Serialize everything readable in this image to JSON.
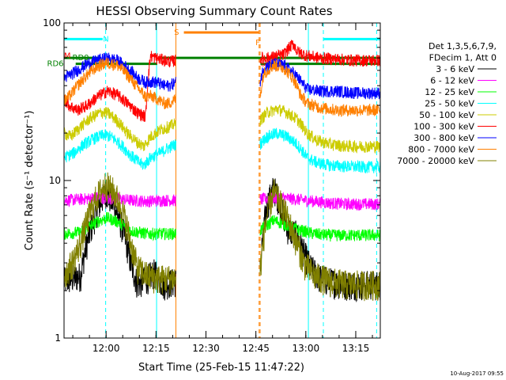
{
  "chart_data": {
    "type": "line",
    "title": "HESSI Observing Summary Count Rates",
    "xlabel": "Start Time (25-Feb-15 11:47:22)",
    "ylabel": "Count Rate (s⁻¹ detector⁻¹)",
    "yscale": "log",
    "ylim": [
      1,
      100
    ],
    "xlim_minutes": [
      0,
      95
    ],
    "x_ticks": [
      {
        "m": 12.63,
        "label": "12:00"
      },
      {
        "m": 27.63,
        "label": "12:15"
      },
      {
        "m": 42.63,
        "label": "12:30"
      },
      {
        "m": 57.63,
        "label": "12:45"
      },
      {
        "m": 72.63,
        "label": "13:00"
      },
      {
        "m": 87.63,
        "label": "13:15"
      }
    ],
    "y_ticks": [
      {
        "v": 1,
        "label": "1"
      },
      {
        "v": 10,
        "label": "10"
      },
      {
        "v": 100,
        "label": "100"
      }
    ],
    "legend_header": [
      "Det 1,3,5,6,7,9,",
      "FDecim 1, Att 0"
    ],
    "legend_position": "right",
    "footer": "10-Aug-2017 09:55",
    "gaps": [
      [
        33.6,
        58.8
      ]
    ],
    "series": [
      {
        "name": "3 - 6 keV",
        "color": "#000000",
        "values": [
          [
            0.0,
            2.3
          ],
          [
            2.5,
            2.4
          ],
          [
            5.0,
            2.5
          ],
          [
            7.5,
            4.5
          ],
          [
            10.0,
            6.5
          ],
          [
            12.5,
            8.5
          ],
          [
            15.0,
            7.0
          ],
          [
            17.5,
            5.0
          ],
          [
            20.0,
            3.0
          ],
          [
            22.0,
            2.2
          ],
          [
            25.0,
            2.4
          ],
          [
            27.0,
            2.6
          ],
          [
            30.0,
            2.2
          ],
          [
            33.6,
            2.3
          ],
          [
            58.8,
            2.5
          ],
          [
            61.0,
            7.0
          ],
          [
            63.0,
            9.0
          ],
          [
            65.0,
            7.0
          ],
          [
            67.0,
            5.0
          ],
          [
            70.0,
            4.5
          ],
          [
            72.0,
            3.5
          ],
          [
            74.0,
            2.8
          ],
          [
            77.0,
            2.4
          ],
          [
            80.0,
            2.3
          ],
          [
            84.0,
            2.2
          ],
          [
            88.0,
            2.2
          ],
          [
            92.0,
            2.2
          ],
          [
            95.0,
            2.2
          ]
        ]
      },
      {
        "name": "6 - 12 keV",
        "color": "#ff00ff",
        "values": [
          [
            0.0,
            7.5
          ],
          [
            5.0,
            7.6
          ],
          [
            10.0,
            7.8
          ],
          [
            15.0,
            7.7
          ],
          [
            20.0,
            7.5
          ],
          [
            25.0,
            7.4
          ],
          [
            30.0,
            7.5
          ],
          [
            33.6,
            7.5
          ],
          [
            58.8,
            7.6
          ],
          [
            65.0,
            7.8
          ],
          [
            70.0,
            7.6
          ],
          [
            75.0,
            7.4
          ],
          [
            80.0,
            7.2
          ],
          [
            85.0,
            7.1
          ],
          [
            90.0,
            7.1
          ],
          [
            95.0,
            7.1
          ]
        ]
      },
      {
        "name": "12 - 25 keV",
        "color": "#00ff00",
        "values": [
          [
            0.0,
            4.6
          ],
          [
            5.0,
            4.7
          ],
          [
            10.0,
            5.5
          ],
          [
            13.0,
            5.8
          ],
          [
            16.0,
            5.5
          ],
          [
            20.0,
            4.8
          ],
          [
            25.0,
            4.6
          ],
          [
            30.0,
            4.6
          ],
          [
            33.6,
            4.6
          ],
          [
            58.8,
            4.8
          ],
          [
            63.0,
            5.6
          ],
          [
            67.0,
            5.2
          ],
          [
            70.0,
            4.9
          ],
          [
            75.0,
            4.6
          ],
          [
            80.0,
            4.5
          ],
          [
            85.0,
            4.5
          ],
          [
            90.0,
            4.5
          ],
          [
            95.0,
            4.5
          ]
        ]
      },
      {
        "name": "25 - 50 keV",
        "color": "#00ffff",
        "values": [
          [
            0.0,
            14.0
          ],
          [
            3.0,
            15.0
          ],
          [
            6.0,
            17.0
          ],
          [
            9.0,
            18.5
          ],
          [
            12.0,
            19.5
          ],
          [
            14.0,
            19.0
          ],
          [
            17.0,
            17.0
          ],
          [
            20.0,
            14.5
          ],
          [
            22.5,
            13.0
          ],
          [
            24.0,
            12.5
          ],
          [
            26.0,
            14.0
          ],
          [
            29.0,
            15.0
          ],
          [
            31.0,
            16.0
          ],
          [
            33.6,
            17.0
          ],
          [
            58.8,
            17.0
          ],
          [
            61.0,
            19.0
          ],
          [
            64.0,
            20.0
          ],
          [
            67.0,
            19.0
          ],
          [
            70.0,
            17.0
          ],
          [
            73.0,
            14.0
          ],
          [
            76.0,
            13.0
          ],
          [
            80.0,
            12.5
          ],
          [
            85.0,
            12.3
          ],
          [
            90.0,
            12.2
          ],
          [
            95.0,
            12.2
          ]
        ]
      },
      {
        "name": "50 - 100 keV",
        "color": "#cccc00",
        "values": [
          [
            0.0,
            20.0
          ],
          [
            2.0,
            19.0
          ],
          [
            5.0,
            22.0
          ],
          [
            8.0,
            25.0
          ],
          [
            11.0,
            27.0
          ],
          [
            13.0,
            27.0
          ],
          [
            16.0,
            24.0
          ],
          [
            19.0,
            20.0
          ],
          [
            22.0,
            17.5
          ],
          [
            24.0,
            16.5
          ],
          [
            26.0,
            19.0
          ],
          [
            29.0,
            21.0
          ],
          [
            31.5,
            22.0
          ],
          [
            33.6,
            23.0
          ],
          [
            58.8,
            24.0
          ],
          [
            61.0,
            27.0
          ],
          [
            64.0,
            28.5
          ],
          [
            67.0,
            27.0
          ],
          [
            70.0,
            24.5
          ],
          [
            73.0,
            20.0
          ],
          [
            76.0,
            18.0
          ],
          [
            80.0,
            17.0
          ],
          [
            85.0,
            16.5
          ],
          [
            90.0,
            16.5
          ],
          [
            95.0,
            16.5
          ]
        ]
      },
      {
        "name": "100 - 300 keV",
        "color": "#ff0000",
        "values": [
          [
            0.0,
            33.0
          ],
          [
            1.5,
            30.0
          ],
          [
            4.0,
            28.0
          ],
          [
            7.0,
            30.0
          ],
          [
            10.0,
            34.0
          ],
          [
            13.0,
            37.0
          ],
          [
            16.0,
            35.0
          ],
          [
            19.0,
            31.0
          ],
          [
            22.0,
            27.0
          ],
          [
            24.5,
            25.5
          ],
          [
            26.0,
            62.0
          ],
          [
            27.5,
            60.0
          ],
          [
            30.0,
            58.0
          ],
          [
            32.0,
            57.0
          ],
          [
            33.6,
            58.0
          ],
          [
            58.8,
            60.0
          ],
          [
            61.0,
            60.0
          ],
          [
            63.0,
            61.0
          ],
          [
            66.0,
            63.0
          ],
          [
            68.0,
            71.0
          ],
          [
            69.0,
            74.0
          ],
          [
            70.0,
            66.0
          ],
          [
            73.0,
            62.0
          ],
          [
            77.0,
            60.0
          ],
          [
            82.0,
            59.0
          ],
          [
            87.0,
            58.0
          ],
          [
            91.0,
            58.0
          ],
          [
            95.0,
            58.0
          ]
        ]
      },
      {
        "name": "300 - 800 keV",
        "color": "#0000ff",
        "values": [
          [
            0.0,
            45.0
          ],
          [
            2.0,
            47.0
          ],
          [
            4.0,
            50.0
          ],
          [
            7.0,
            55.0
          ],
          [
            10.0,
            58.0
          ],
          [
            13.0,
            60.0
          ],
          [
            16.0,
            58.0
          ],
          [
            19.0,
            52.0
          ],
          [
            22.0,
            45.0
          ],
          [
            24.5,
            42.0
          ],
          [
            26.0,
            42.5
          ],
          [
            28.0,
            42.0
          ],
          [
            30.0,
            40.0
          ],
          [
            31.5,
            40.0
          ],
          [
            33.6,
            42.0
          ],
          [
            58.8,
            42.0
          ],
          [
            60.0,
            52.0
          ],
          [
            63.0,
            55.0
          ],
          [
            66.0,
            54.0
          ],
          [
            69.0,
            48.0
          ],
          [
            71.0,
            43.0
          ],
          [
            73.0,
            38.0
          ],
          [
            77.0,
            37.0
          ],
          [
            82.0,
            37.0
          ],
          [
            88.0,
            36.0
          ],
          [
            95.0,
            36.0
          ]
        ]
      },
      {
        "name": "800 - 7000 keV",
        "color": "#ff8000",
        "values": [
          [
            0.0,
            32.0
          ],
          [
            2.0,
            35.0
          ],
          [
            4.0,
            40.0
          ],
          [
            7.0,
            47.0
          ],
          [
            10.0,
            53.0
          ],
          [
            13.0,
            56.0
          ],
          [
            16.0,
            54.0
          ],
          [
            19.0,
            47.0
          ],
          [
            22.0,
            39.0
          ],
          [
            24.5,
            34.0
          ],
          [
            26.0,
            34.5
          ],
          [
            28.0,
            33.0
          ],
          [
            30.0,
            31.0
          ],
          [
            31.5,
            31.0
          ],
          [
            33.6,
            33.0
          ],
          [
            58.8,
            33.0
          ],
          [
            60.0,
            48.0
          ],
          [
            63.0,
            54.0
          ],
          [
            66.0,
            52.0
          ],
          [
            69.0,
            44.0
          ],
          [
            71.0,
            35.0
          ],
          [
            73.0,
            31.0
          ],
          [
            77.0,
            29.0
          ],
          [
            82.0,
            28.0
          ],
          [
            88.0,
            28.0
          ],
          [
            95.0,
            28.0
          ]
        ]
      },
      {
        "name": "7000 - 20000 keV",
        "color": "#808000",
        "values": [
          [
            0.0,
            2.5
          ],
          [
            2.5,
            3.0
          ],
          [
            5.0,
            4.0
          ],
          [
            7.5,
            6.0
          ],
          [
            10.0,
            8.0
          ],
          [
            12.5,
            9.5
          ],
          [
            15.0,
            8.5
          ],
          [
            17.5,
            6.5
          ],
          [
            20.0,
            4.0
          ],
          [
            22.0,
            2.8
          ],
          [
            25.0,
            2.5
          ],
          [
            28.0,
            2.4
          ],
          [
            30.0,
            2.4
          ],
          [
            33.6,
            2.4
          ],
          [
            58.8,
            2.5
          ],
          [
            61.0,
            6.0
          ],
          [
            63.0,
            8.5
          ],
          [
            66.0,
            6.5
          ],
          [
            69.0,
            4.5
          ],
          [
            72.0,
            3.0
          ],
          [
            75.0,
            2.5
          ],
          [
            80.0,
            2.3
          ],
          [
            85.0,
            2.2
          ],
          [
            90.0,
            2.2
          ],
          [
            95.0,
            2.2
          ]
        ]
      }
    ],
    "flags": [
      {
        "label": "N",
        "color": "#00ffff",
        "y": 79,
        "segments": [
          [
            0.0,
            11.6
          ],
          [
            78.0,
            95.0
          ]
        ],
        "label_m": 12.6
      },
      {
        "label": "S",
        "color": "#ff8000",
        "y": 87,
        "segments": [
          [
            36.0,
            58.5
          ]
        ],
        "label_m": 33.8
      },
      {
        "label": "F",
        "color": "#ff8000",
        "y": 75,
        "segments": [],
        "label_m": 58.2
      },
      {
        "label": "RD0",
        "color": "#008000",
        "y": 60,
        "segments": [
          [
            0.0,
            11.0
          ],
          [
            29.0,
            95.0
          ]
        ],
        "label_m": 5.0
      },
      {
        "label": "RD6",
        "color": "#008000",
        "y": 55,
        "segments": [
          [
            0.0,
            0.0
          ],
          [
            3.5,
            28.0
          ],
          [
            59.0,
            95.0
          ]
        ],
        "label_m": -2.6
      }
    ],
    "markers": [
      {
        "label": "M",
        "color": "#ff0000",
        "m": 1.0,
        "y": 62
      },
      {
        "label": "SAA",
        "color": "#ff0000",
        "m": 61.5,
        "y": 55
      }
    ],
    "vlines": [
      {
        "m": 12.5,
        "color": "#00ffff",
        "style": "dashed"
      },
      {
        "m": 27.8,
        "color": "#00ffff",
        "style": "solid"
      },
      {
        "m": 33.6,
        "color": "#ff8000",
        "style": "solid"
      },
      {
        "m": 58.6,
        "color": "#ff8000",
        "style": "dashed"
      },
      {
        "m": 58.9,
        "color": "#ff8000",
        "style": "dashed"
      },
      {
        "m": 73.4,
        "color": "#00ffff",
        "style": "solid"
      },
      {
        "m": 77.9,
        "color": "#00ffff",
        "style": "dashed"
      },
      {
        "m": 93.9,
        "color": "#00ffff",
        "style": "dashed"
      }
    ]
  }
}
